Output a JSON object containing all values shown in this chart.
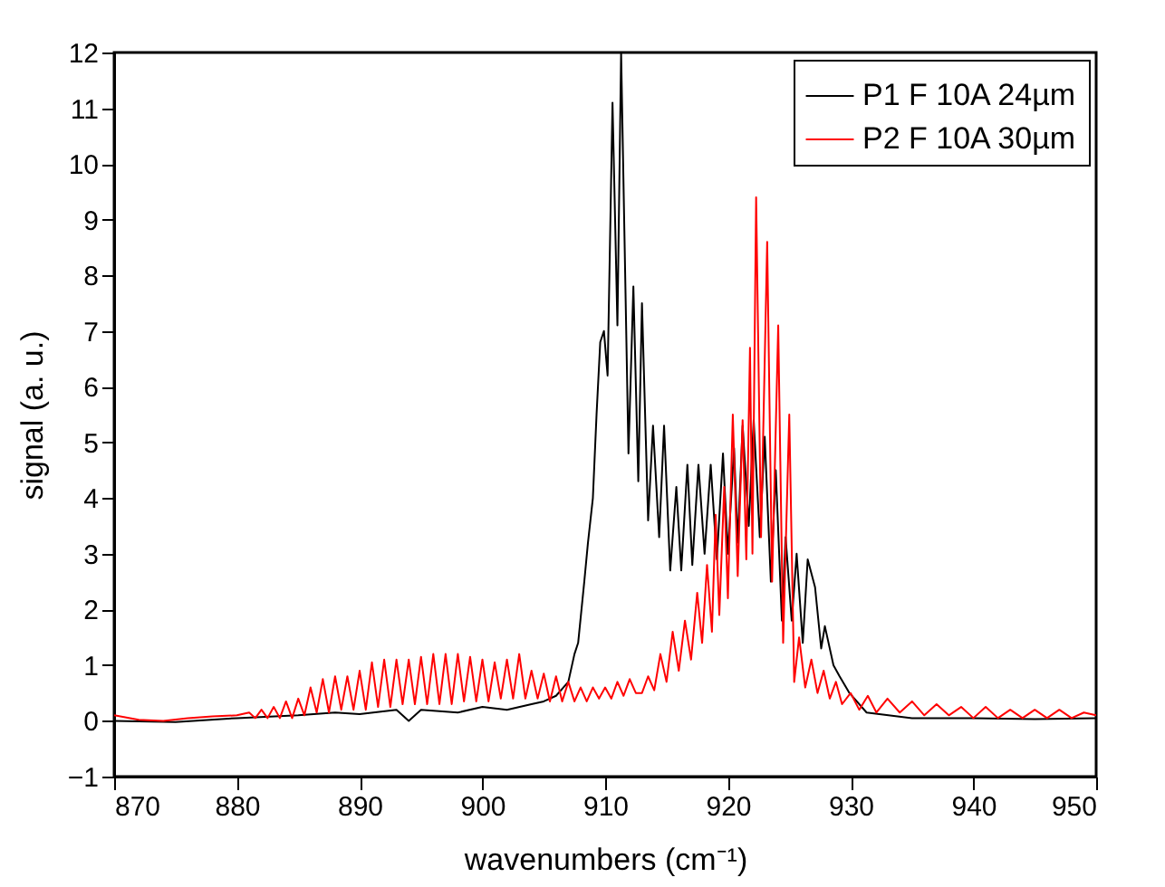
{
  "chart_data": {
    "type": "line",
    "xlabel": "wavenumbers (cm⁻¹)",
    "ylabel": "signal (a. u.)",
    "xlim": [
      870,
      950
    ],
    "xticks": [
      870,
      880,
      890,
      900,
      910,
      920,
      930,
      940,
      950
    ],
    "ylim": [
      -1,
      12
    ],
    "yticks": [
      -1,
      0,
      1,
      2,
      3,
      4,
      5,
      6,
      7,
      8,
      9,
      10,
      11,
      12
    ],
    "grid": false,
    "legend": "top right",
    "series": [
      {
        "name": "P1 F 10A 24µm",
        "color": "#000000",
        "x": [
          870,
          875,
          880,
          885,
          888,
          890,
          893,
          894,
          895,
          898,
          900,
          902,
          904,
          905,
          906,
          907,
          907.5,
          907.8,
          908.3,
          908.6,
          909,
          909.3,
          909.6,
          909.9,
          910.2,
          910.6,
          911.0,
          911.3,
          911.9,
          912.3,
          912.7,
          913.0,
          913.5,
          913.9,
          914.4,
          914.8,
          915.3,
          915.8,
          916.2,
          916.7,
          917.1,
          917.6,
          918.1,
          918.6,
          919.1,
          919.6,
          920.0,
          920.5,
          920.8,
          921.2,
          921.7,
          922.1,
          922.6,
          923.0,
          923.5,
          923.9,
          924.4,
          924.7,
          925.2,
          925.6,
          926.1,
          926.5,
          927.1,
          927.6,
          927.9,
          928.6,
          929.1,
          929.9,
          931.3,
          935,
          940,
          945,
          950
        ],
        "values": [
          0.0,
          -0.02,
          0.05,
          0.1,
          0.15,
          0.12,
          0.2,
          0.0,
          0.2,
          0.15,
          0.25,
          0.2,
          0.3,
          0.35,
          0.45,
          0.7,
          1.2,
          1.4,
          2.5,
          3.2,
          4.0,
          5.5,
          6.8,
          7.0,
          6.2,
          11.1,
          7.1,
          12.0,
          4.8,
          7.8,
          4.3,
          7.5,
          3.6,
          5.3,
          3.3,
          5.3,
          2.7,
          4.2,
          2.7,
          4.6,
          2.8,
          4.6,
          3.0,
          4.6,
          2.9,
          4.8,
          3.0,
          4.9,
          3.2,
          5.3,
          3.5,
          5.4,
          3.3,
          5.1,
          2.5,
          4.5,
          1.8,
          3.3,
          1.8,
          3.0,
          1.4,
          2.9,
          2.4,
          1.3,
          1.7,
          1.0,
          0.8,
          0.5,
          0.15,
          0.05,
          0.05,
          0.03,
          0.05
        ]
      },
      {
        "name": "P2 F 10A 30µm",
        "color": "#ff0000",
        "x": [
          870,
          872,
          874,
          876,
          878,
          880,
          881,
          881.5,
          882,
          882.5,
          883,
          883.5,
          884,
          884.5,
          885,
          885.5,
          886,
          886.5,
          887,
          887.5,
          888,
          888.5,
          889,
          889.5,
          890,
          890.5,
          891,
          891.5,
          892,
          892.5,
          893,
          893.5,
          894,
          894.5,
          895,
          895.5,
          896,
          896.5,
          897,
          897.5,
          898,
          898.5,
          899,
          899.5,
          900,
          900.5,
          901,
          901.5,
          902,
          902.5,
          903,
          903.5,
          904,
          904.5,
          905,
          905.5,
          906,
          906.5,
          907,
          907.5,
          908,
          908.5,
          909,
          909.5,
          910,
          910.5,
          911,
          911.5,
          912,
          912.5,
          913,
          913.5,
          914,
          914.5,
          915,
          915.5,
          916,
          916.5,
          917,
          917.5,
          917.9,
          918.3,
          918.7,
          919,
          919.3,
          919.7,
          920,
          920.4,
          920.8,
          921.2,
          921.5,
          921.8,
          922.0,
          922.3,
          922.7,
          923.2,
          923.6,
          924.1,
          924.5,
          925.0,
          925.4,
          925.8,
          926.3,
          926.8,
          927.3,
          927.8,
          928.3,
          928.8,
          929.3,
          930,
          930.7,
          931.4,
          932.1,
          933,
          934,
          935,
          936,
          937,
          938,
          939,
          940,
          941,
          942,
          943,
          944,
          945,
          946,
          947,
          948,
          949,
          950
        ],
        "values": [
          0.1,
          0.02,
          0.0,
          0.05,
          0.08,
          0.1,
          0.15,
          0.05,
          0.2,
          0.05,
          0.25,
          0.05,
          0.35,
          0.05,
          0.4,
          0.1,
          0.6,
          0.15,
          0.75,
          0.15,
          0.8,
          0.2,
          0.8,
          0.2,
          0.9,
          0.2,
          1.05,
          0.25,
          1.1,
          0.25,
          1.1,
          0.3,
          1.1,
          0.3,
          1.15,
          0.3,
          1.2,
          0.3,
          1.2,
          0.3,
          1.2,
          0.35,
          1.15,
          0.35,
          1.1,
          0.35,
          1.05,
          0.4,
          1.1,
          0.4,
          1.2,
          0.4,
          0.9,
          0.4,
          0.85,
          0.35,
          0.8,
          0.35,
          0.7,
          0.35,
          0.6,
          0.35,
          0.6,
          0.4,
          0.6,
          0.4,
          0.7,
          0.45,
          0.75,
          0.5,
          0.5,
          0.8,
          0.55,
          1.2,
          0.7,
          1.6,
          0.9,
          1.8,
          1.1,
          2.3,
          1.4,
          2.8,
          1.6,
          3.7,
          1.9,
          4.2,
          2.2,
          5.5,
          2.6,
          5.4,
          2.9,
          6.7,
          3.0,
          9.4,
          3.3,
          8.6,
          2.5,
          7.1,
          1.4,
          5.5,
          0.7,
          1.5,
          0.6,
          1.1,
          0.5,
          0.9,
          0.4,
          0.7,
          0.3,
          0.5,
          0.2,
          0.45,
          0.15,
          0.4,
          0.15,
          0.35,
          0.1,
          0.3,
          0.1,
          0.25,
          0.05,
          0.25,
          0.05,
          0.2,
          0.05,
          0.2,
          0.05,
          0.2,
          0.05,
          0.15,
          0.1
        ]
      }
    ]
  }
}
